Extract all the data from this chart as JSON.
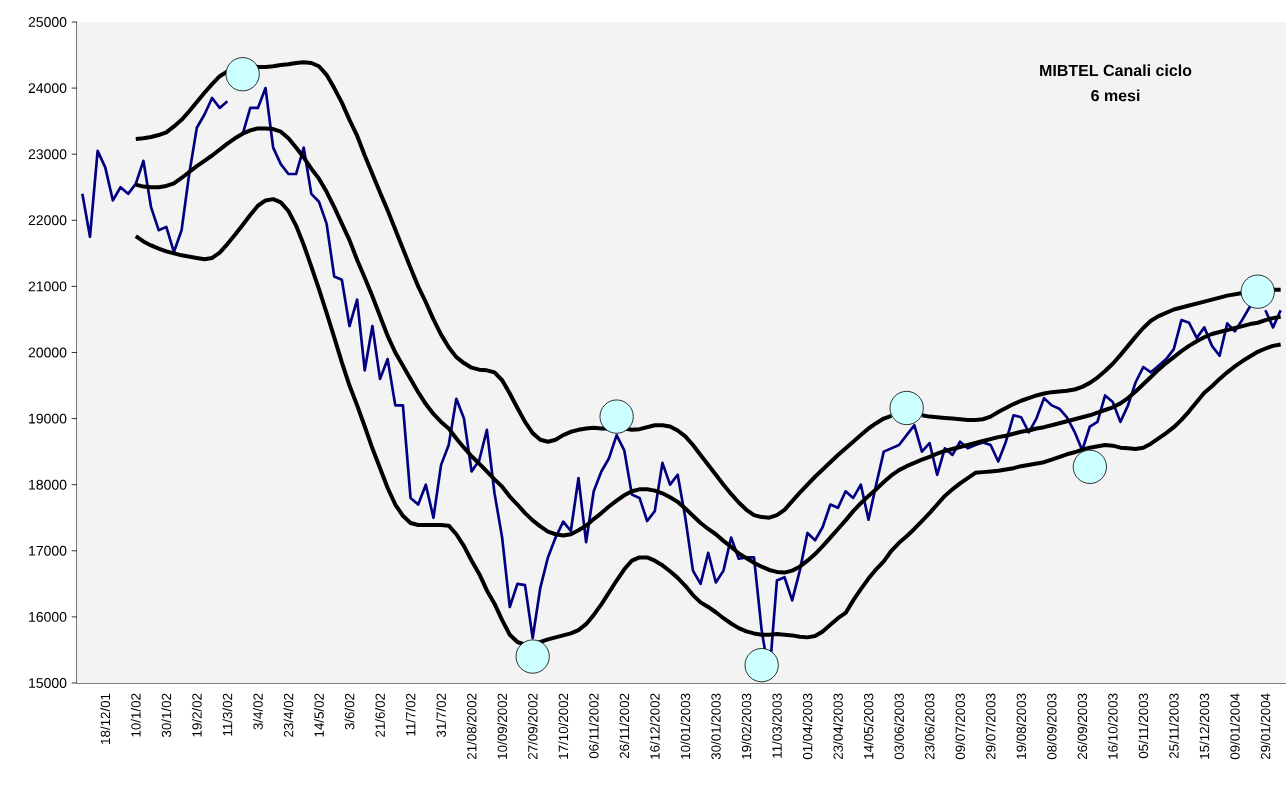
{
  "chart_data": {
    "type": "line",
    "title": "MIBTEL Canali ciclo",
    "subtitle": "6 mesi",
    "categories": [
      null,
      null,
      null,
      "18/12/01",
      null,
      null,
      null,
      "10/1/02",
      null,
      null,
      null,
      "30/1/02",
      null,
      null,
      null,
      "19/2/02",
      null,
      null,
      null,
      "11/3/02",
      null,
      null,
      null,
      "3/4/02",
      null,
      null,
      null,
      "23/4/02",
      null,
      null,
      null,
      "14/5/02",
      null,
      null,
      null,
      "3/6/02",
      null,
      null,
      null,
      "21/6/02",
      null,
      null,
      null,
      "11/7/02",
      null,
      null,
      null,
      "31/7/02",
      null,
      null,
      null,
      "21/08/2002",
      null,
      null,
      null,
      "10/09/2002",
      null,
      null,
      null,
      "27/09/2002",
      null,
      null,
      null,
      "17/10/2002",
      null,
      null,
      null,
      "06/11/2002",
      null,
      null,
      null,
      "26/11/2002",
      null,
      null,
      null,
      "16/12/2002",
      null,
      null,
      null,
      "10/01/2003",
      null,
      null,
      null,
      "30/01/2003",
      null,
      null,
      null,
      "19/02/2003",
      null,
      null,
      null,
      "11/03/2003",
      null,
      null,
      null,
      "01/04/2003",
      null,
      null,
      null,
      "23/04/2003",
      null,
      null,
      null,
      "14/05/2003",
      null,
      null,
      null,
      "03/06/2003",
      null,
      null,
      null,
      "23/06/2003",
      null,
      null,
      null,
      "09/07/2003",
      null,
      null,
      null,
      "29/07/2003",
      null,
      null,
      null,
      "19/08/2003",
      null,
      null,
      null,
      "08/09/2003",
      null,
      null,
      null,
      "26/09/2003",
      null,
      null,
      null,
      "16/10/2003",
      null,
      null,
      null,
      "05/11/2003",
      null,
      null,
      null,
      "25/11/2003",
      null,
      null,
      null,
      "15/12/2003",
      null,
      null,
      null,
      "09/01/2004",
      null,
      null,
      null,
      "29/01/2004",
      null,
      null
    ],
    "ylim": [
      15000,
      25000
    ],
    "yticks": [
      15000,
      16000,
      17000,
      18000,
      19000,
      20000,
      21000,
      22000,
      23000,
      24000,
      25000
    ],
    "marker": "none",
    "line_style": "solid",
    "series": [
      {
        "color": "#000080",
        "values": [
          22400,
          21750,
          23050,
          22800,
          22300,
          22500,
          22400,
          22550,
          22900,
          22200,
          21850,
          21900,
          21520,
          21850,
          22700,
          23400,
          23600,
          23850,
          23700,
          23800,
          null,
          23300,
          23700,
          23700,
          24000,
          23100,
          22850,
          22700,
          22700,
          23100,
          22400,
          22280,
          21950,
          21150,
          21100,
          20400,
          20800,
          19730,
          20400,
          19600,
          19900,
          19200,
          19200,
          17800,
          17700,
          18000,
          17500,
          18300,
          18600,
          19300,
          19000,
          18200,
          18370,
          18830,
          17870,
          17200,
          16150,
          16500,
          16480,
          15680,
          16440,
          16900,
          17200,
          17440,
          17300,
          18100,
          17130,
          17900,
          18200,
          18400,
          18750,
          18520,
          17850,
          17800,
          17450,
          17600,
          18330,
          18000,
          18150,
          17500,
          16700,
          16500,
          16970,
          16520,
          16700,
          17200,
          16880,
          16900,
          16900,
          15800,
          15100,
          16550,
          16600,
          16250,
          16700,
          17270,
          17160,
          17360,
          17700,
          17650,
          17900,
          17800,
          18000,
          17470,
          18000,
          18500,
          18550,
          18600,
          18750,
          18900,
          18500,
          18630,
          18150,
          18550,
          18450,
          18650,
          18550,
          18600,
          18640,
          18600,
          18350,
          18650,
          19050,
          19020,
          18790,
          19000,
          19310,
          19200,
          19150,
          19020,
          18800,
          18520,
          18880,
          18950,
          19350,
          19250,
          18950,
          19200,
          19550,
          19780,
          19700,
          19800,
          19900,
          20050,
          20490,
          20450,
          20220,
          20380,
          20100,
          19950,
          20440,
          20320,
          20500,
          20700,
          null,
          20640,
          20380,
          20640
        ]
      },
      {
        "color": "#000000",
        "values": [
          null,
          null,
          null,
          null,
          null,
          null,
          null,
          23230,
          23240,
          23260,
          23290,
          23330,
          23420,
          23520,
          23650,
          23790,
          23930,
          24060,
          24180,
          24250,
          null,
          null,
          24340,
          24320,
          24320,
          24330,
          24350,
          24360,
          24380,
          24390,
          24380,
          24330,
          24200,
          24000,
          23780,
          23520,
          23280,
          22980,
          22700,
          22420,
          22150,
          21860,
          21570,
          21280,
          21000,
          20760,
          20500,
          20270,
          20080,
          19930,
          19840,
          19770,
          19740,
          19730,
          19700,
          19580,
          19380,
          19160,
          18950,
          18780,
          18680,
          18650,
          18680,
          18750,
          18800,
          18830,
          18850,
          18860,
          18850,
          18850,
          18850,
          18850,
          18830,
          18840,
          18870,
          18900,
          18900,
          18880,
          18820,
          18730,
          18600,
          18450,
          18300,
          18150,
          18000,
          17860,
          17730,
          17620,
          17540,
          17510,
          17500,
          17540,
          17620,
          17750,
          17880,
          18000,
          18120,
          18230,
          18340,
          18450,
          18550,
          18650,
          18750,
          18850,
          18930,
          19000,
          19040,
          null,
          null,
          null,
          19050,
          19030,
          19020,
          19010,
          19000,
          18990,
          18980,
          18980,
          18990,
          19030,
          19100,
          19160,
          19220,
          19270,
          19310,
          19350,
          19380,
          19400,
          19410,
          19420,
          19440,
          19480,
          19540,
          19620,
          19720,
          19830,
          19960,
          20100,
          20240,
          20370,
          20480,
          20550,
          20600,
          20650,
          20680,
          20710,
          20740,
          20770,
          20800,
          20830,
          20860,
          20880,
          20900,
          null,
          null,
          null,
          20950,
          20950
        ]
      },
      {
        "color": "#000000",
        "values": [
          null,
          null,
          null,
          null,
          null,
          null,
          null,
          22540,
          22510,
          22500,
          22500,
          22520,
          22560,
          22640,
          22730,
          22820,
          22900,
          22980,
          23070,
          23160,
          23240,
          23310,
          23360,
          23390,
          23390,
          23380,
          23340,
          23240,
          23100,
          22950,
          22780,
          22630,
          22430,
          22200,
          21950,
          21700,
          21400,
          21130,
          20850,
          20550,
          20250,
          20000,
          19800,
          19600,
          19400,
          19220,
          19070,
          18950,
          18850,
          18700,
          18560,
          18430,
          18320,
          18200,
          18080,
          17970,
          17820,
          17700,
          17570,
          17460,
          17370,
          17290,
          17250,
          17230,
          17250,
          17310,
          17380,
          17480,
          17570,
          17670,
          17760,
          17840,
          17900,
          17930,
          17930,
          17910,
          17870,
          17810,
          17740,
          17640,
          17530,
          17420,
          17330,
          17250,
          17150,
          17060,
          16960,
          16890,
          16820,
          16760,
          16710,
          16680,
          16670,
          16700,
          16760,
          16850,
          16950,
          17070,
          17200,
          17330,
          17460,
          17600,
          17720,
          17830,
          17930,
          18040,
          18140,
          18220,
          18280,
          18330,
          18380,
          18420,
          18470,
          18510,
          18540,
          18570,
          18600,
          18630,
          18660,
          18690,
          18720,
          18740,
          18770,
          18800,
          18820,
          18850,
          18870,
          18900,
          18930,
          18960,
          18990,
          19020,
          19050,
          19090,
          19130,
          19170,
          19230,
          19310,
          19410,
          19520,
          19630,
          19740,
          19840,
          19930,
          20020,
          20100,
          20170,
          20230,
          20280,
          20310,
          20340,
          20370,
          20400,
          20430,
          20450,
          20490,
          20520,
          20540
        ]
      },
      {
        "color": "#000000",
        "values": [
          null,
          null,
          null,
          null,
          null,
          null,
          null,
          21760,
          21680,
          21620,
          21570,
          21530,
          21500,
          21470,
          21450,
          21430,
          21410,
          21430,
          21510,
          21640,
          21780,
          21930,
          22080,
          22220,
          22300,
          22320,
          22270,
          22140,
          21920,
          21630,
          21300,
          20960,
          20600,
          20230,
          19850,
          19500,
          19200,
          18880,
          18550,
          18250,
          17950,
          17700,
          17530,
          17420,
          17390,
          17390,
          17390,
          17390,
          17380,
          17250,
          17070,
          16850,
          16650,
          16400,
          16200,
          15950,
          15730,
          15620,
          15580,
          15580,
          15620,
          15660,
          15690,
          15720,
          15750,
          15800,
          15890,
          16030,
          16190,
          16370,
          16550,
          16720,
          16850,
          16900,
          16900,
          16850,
          16780,
          16690,
          16590,
          16470,
          16330,
          16220,
          16150,
          16070,
          15980,
          15900,
          15830,
          15780,
          15750,
          15730,
          15730,
          15740,
          15730,
          15720,
          15700,
          15690,
          15710,
          15780,
          15880,
          15980,
          16060,
          16250,
          16420,
          16580,
          16720,
          16840,
          17000,
          17120,
          17220,
          17330,
          17450,
          17570,
          17700,
          17830,
          17930,
          18020,
          18100,
          18180,
          18190,
          18200,
          18210,
          18230,
          18250,
          18280,
          18300,
          18320,
          18340,
          18380,
          18420,
          18460,
          18490,
          18530,
          18560,
          18580,
          18600,
          18590,
          18560,
          18550,
          18540,
          18560,
          18620,
          18700,
          18780,
          18870,
          18980,
          19110,
          19250,
          19390,
          19490,
          19600,
          19700,
          19790,
          19870,
          19940,
          20010,
          20060,
          20100,
          20120
        ]
      },
      {
        "type": "scatter",
        "color": "#ccffff",
        "marker": "circle",
        "values": [
          null,
          null,
          null,
          null,
          null,
          null,
          null,
          null,
          null,
          null,
          null,
          null,
          null,
          null,
          null,
          null,
          null,
          null,
          null,
          null,
          null,
          24210,
          null,
          null,
          null,
          null,
          null,
          null,
          null,
          null,
          null,
          null,
          null,
          null,
          null,
          null,
          null,
          null,
          null,
          null,
          null,
          null,
          null,
          null,
          null,
          null,
          null,
          null,
          null,
          null,
          null,
          null,
          null,
          null,
          null,
          null,
          null,
          null,
          null,
          15400,
          null,
          null,
          null,
          null,
          null,
          null,
          null,
          null,
          null,
          null,
          19030,
          null,
          null,
          null,
          null,
          null,
          null,
          null,
          null,
          null,
          null,
          null,
          null,
          null,
          null,
          null,
          null,
          null,
          null,
          15270,
          null,
          null,
          null,
          null,
          null,
          null,
          null,
          null,
          null,
          null,
          null,
          null,
          null,
          null,
          null,
          null,
          null,
          null,
          19160,
          null,
          null,
          null,
          null,
          null,
          null,
          null,
          null,
          null,
          null,
          null,
          null,
          null,
          null,
          null,
          null,
          null,
          null,
          null,
          null,
          null,
          null,
          null,
          18270,
          null,
          null,
          null,
          null,
          null,
          null,
          null,
          null,
          null,
          null,
          null,
          null,
          null,
          null,
          null,
          null,
          null,
          null,
          null,
          null,
          null,
          20920,
          null,
          null,
          null
        ]
      }
    ]
  }
}
